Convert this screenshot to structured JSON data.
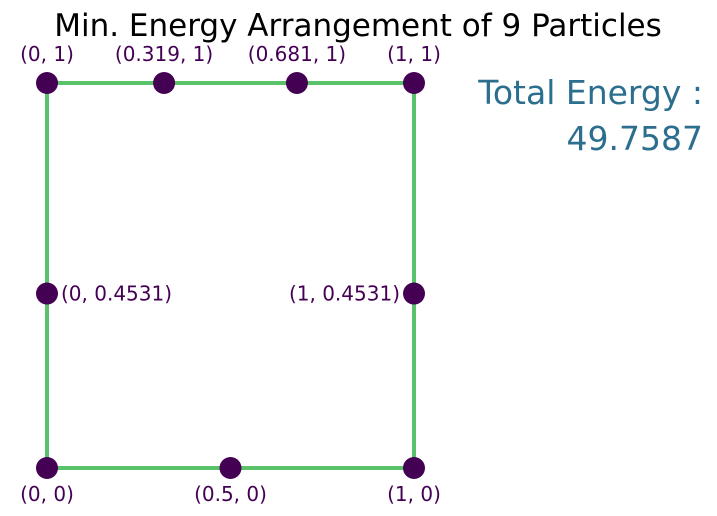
{
  "chart_data": {
    "type": "scatter",
    "title": "Min. Energy Arrangement of 9 Particles",
    "xlim": [
      0,
      1
    ],
    "ylim": [
      0,
      1
    ],
    "axes_visible": false,
    "grid": false,
    "points": [
      {
        "x": 0,
        "y": 1,
        "label": "(0, 1)",
        "label_pos": "above"
      },
      {
        "x": 0.319,
        "y": 1,
        "label": "(0.319, 1)",
        "label_pos": "above"
      },
      {
        "x": 0.681,
        "y": 1,
        "label": "(0.681, 1)",
        "label_pos": "above"
      },
      {
        "x": 1,
        "y": 1,
        "label": "(1, 1)",
        "label_pos": "above"
      },
      {
        "x": 0,
        "y": 0.4531,
        "label": "(0, 0.4531)",
        "label_pos": "right"
      },
      {
        "x": 1,
        "y": 0.4531,
        "label": "(1, 0.4531)",
        "label_pos": "left"
      },
      {
        "x": 0,
        "y": 0,
        "label": "(0, 0)",
        "label_pos": "below"
      },
      {
        "x": 0.5,
        "y": 0,
        "label": "(0.5, 0)",
        "label_pos": "below"
      },
      {
        "x": 1,
        "y": 0,
        "label": "(1, 0)",
        "label_pos": "below"
      }
    ],
    "boundary": [
      [
        0,
        0
      ],
      [
        1,
        0
      ],
      [
        1,
        1
      ],
      [
        0,
        1
      ],
      [
        0,
        0
      ]
    ],
    "annotations": {
      "energy_label": "Total Energy :",
      "energy_value": "49.7587"
    },
    "colors": {
      "point": "#440154",
      "boundary": "#5ac26a",
      "energy_text": "#2c6e8e"
    }
  }
}
